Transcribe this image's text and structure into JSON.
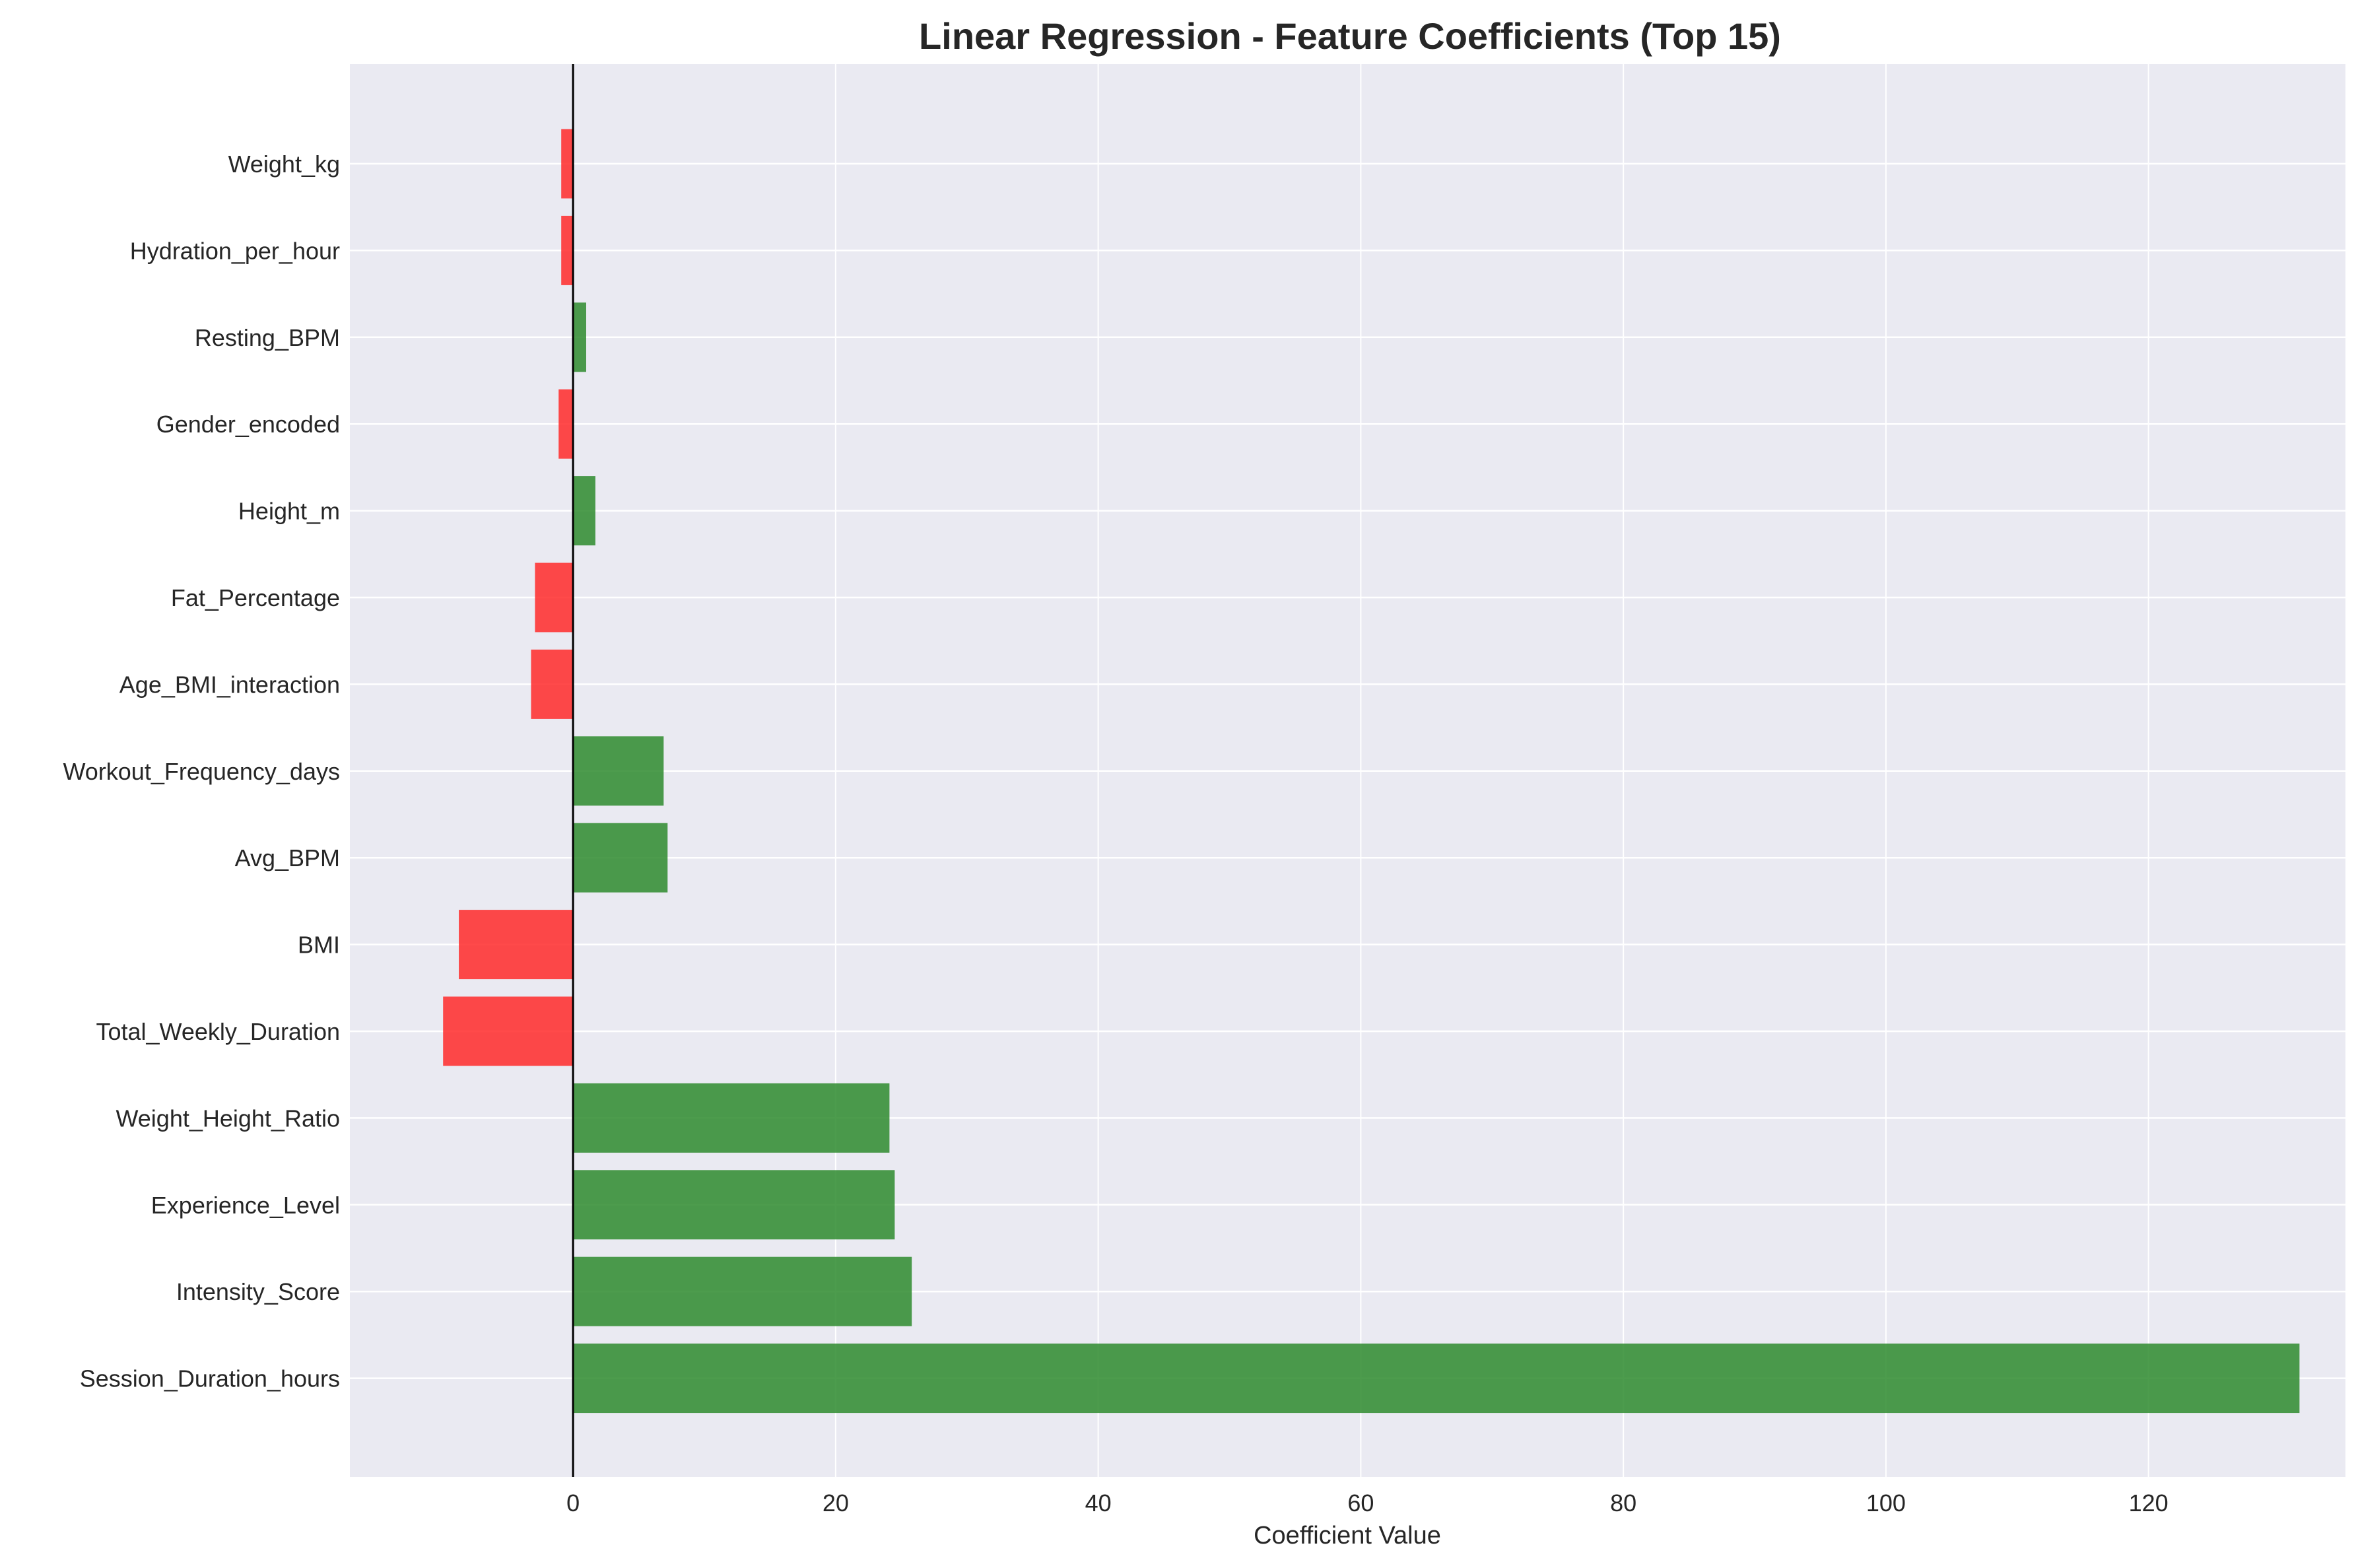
{
  "chart_data": {
    "type": "bar",
    "orientation": "horizontal",
    "title": "Linear Regression - Feature Coefficients (Top 15)",
    "xlabel": "Coefficient Value",
    "ylabel": "",
    "xlim": [
      -17,
      135
    ],
    "xticks": [
      0,
      20,
      40,
      60,
      80,
      100,
      120
    ],
    "grid": true,
    "legend": "none",
    "colors": {
      "positive": "#2e8b2e",
      "negative": "#ff2a2a",
      "plot_background": "#eaeaf2",
      "grid": "#ffffff",
      "zero_line": "#000000"
    },
    "categories": [
      "Weight_kg",
      "Hydration_per_hour",
      "Resting_BPM",
      "Gender_encoded",
      "Height_m",
      "Fat_Percentage",
      "Age_BMI_interaction",
      "Workout_Frequency_days",
      "Avg_BPM",
      "BMI",
      "Total_Weekly_Duration",
      "Weight_Height_Ratio",
      "Experience_Level",
      "Intensity_Score",
      "Session_Duration_hours"
    ],
    "values": [
      -0.9,
      -0.9,
      1.0,
      -1.1,
      1.7,
      -2.9,
      -3.2,
      6.9,
      7.2,
      -8.7,
      -9.9,
      24.1,
      24.5,
      25.8,
      131.5
    ]
  }
}
